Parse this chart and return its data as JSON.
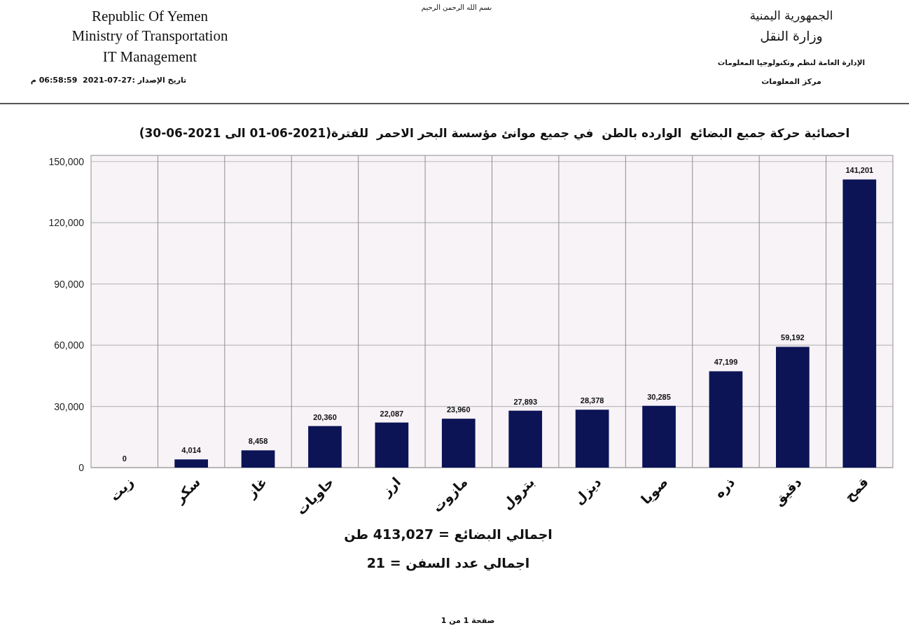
{
  "chart_data": {
    "type": "bar",
    "title": "احصائية حركة جميع البضائع  الوارده بالطن  في جميع موانئ مؤسسة البحر الاحمر  للفترة(2021-06-01 الى 2021-06-30)",
    "categories": [
      "زيت",
      "سكر",
      "غاز",
      "حاويات",
      "ارز",
      "مازوت",
      "بترول",
      "ديزل",
      "صويا",
      "ذره",
      "دقيق",
      "قمح"
    ],
    "values": [
      0,
      4014,
      8458,
      20360,
      22087,
      23960,
      27893,
      28378,
      30285,
      47199,
      59192,
      141201
    ],
    "value_labels": [
      "0",
      "4,014",
      "8,458",
      "20,360",
      "22,087",
      "23,960",
      "27,893",
      "28,378",
      "30,285",
      "47,199",
      "59,192",
      "141,201"
    ],
    "color": "#0c1456",
    "ylim": [
      0,
      153000
    ],
    "yticks": [
      0,
      {
        "value": 30000,
        "label": "30,000"
      },
      {
        "value": 60000,
        "label": "60,000"
      },
      {
        "value": 90000,
        "label": "90,000"
      },
      {
        "value": 120000,
        "label": "120,000"
      },
      {
        "value": 150000,
        "label": "150,000"
      }
    ],
    "grid": true,
    "annotations": [
      "Republic Of Yemen",
      "Ministry of Transportation",
      "IT Management",
      "تاريخ الإصدار :27-07-2021  06:58:59 م",
      "الجمهورية اليمنية",
      "وزارة النقل",
      "الإدارة العامة لنظم وتكنولوجيا المعلومات",
      "مركز المعلومات",
      "بسم الله الرحمن الرحيم",
      "اجمالي البضائع = 413,027 طن",
      "اجمالي عدد السفن = 21",
      "صفحة 1 من 1"
    ]
  }
}
